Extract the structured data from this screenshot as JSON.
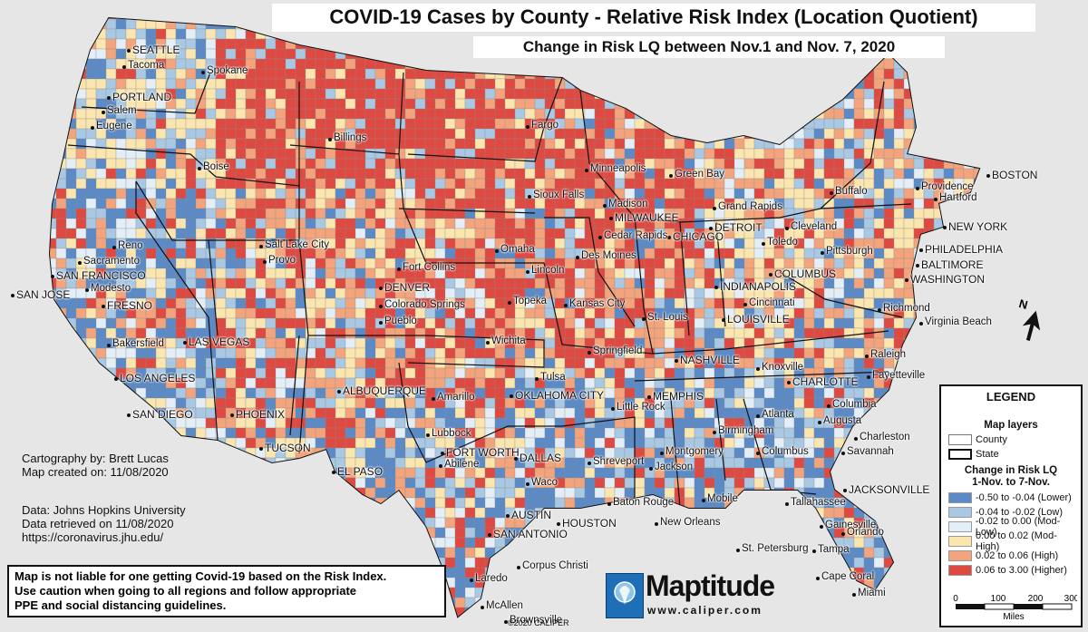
{
  "title": "COVID-19 Cases by County - Relative Risk Index (Location Quotient)",
  "subtitle": "Change in Risk LQ between Nov.1 and Nov. 7, 2020",
  "credits": {
    "cartography": "Cartography by: Brett Lucas",
    "created": "Map created on: 11/08/2020",
    "data_source": "Data: Johns Hopkins University",
    "retrieved": "Data retrieved on 11/08/2020",
    "url": "https://coronavirus.jhu.edu/"
  },
  "disclaimer": {
    "line1": "Map is not liable for one getting Covid-19 based on the Risk Index.",
    "line2": "Use caution when going to all regions and follow appropriate",
    "line3": "PPE and social distancing guidelines."
  },
  "legend": {
    "title": "LEGEND",
    "layers_heading": "Map layers",
    "layer_county": "County",
    "layer_state": "State",
    "change_heading": "Change in Risk LQ",
    "change_period": "1-Nov. to 7-Nov.",
    "classes": [
      {
        "label": "-0.50 to -0.04 (Lower)",
        "color": "#5b8ac6"
      },
      {
        "label": "-0.04 to -0.02 (Low)",
        "color": "#a9c8e4"
      },
      {
        "label": "-0.02 to 0.00 (Mod-Low)",
        "color": "#e4eef6"
      },
      {
        "label": "0.00 to 0.02 (Mod-High)",
        "color": "#fbe6b0"
      },
      {
        "label": "0.02 to 0.06 (High)",
        "color": "#f3a47c"
      },
      {
        "label": "0.06 to 3.00 (Higher)",
        "color": "#de4a42"
      }
    ],
    "scale_ticks": [
      "0",
      "100",
      "200",
      "300"
    ],
    "scale_unit": "Miles"
  },
  "brand": {
    "name": "Maptitude",
    "url": "www.caliper.com",
    "copyright": "©2020 CALIPER"
  },
  "north_label": "N",
  "cities": [
    "SEATTLE",
    "Tacoma",
    "PORTLAND",
    "Salem",
    "Eugene",
    "Spokane",
    "Boise",
    "Billings",
    "Fargo",
    "Minneapolis",
    "Green Bay",
    "Sioux Falls",
    "Madison",
    "MILWAUKEE",
    "Grand Rapids",
    "DETROIT",
    "Buffalo",
    "BOSTON",
    "Providence",
    "Hartford",
    "NEW YORK",
    "PHILADELPHIA",
    "BALTIMORE",
    "WASHINGTON",
    "Richmond",
    "Virginia Beach",
    "Cleveland",
    "Toledo",
    "Pittsburgh",
    "COLUMBUS",
    "INDIANAPOLIS",
    "Cincinnati",
    "LOUISVILLE",
    "CHICAGO",
    "Cedar Rapids",
    "Des Moines",
    "Omaha",
    "Lincoln",
    "Reno",
    "Sacramento",
    "SAN FRANCISCO",
    "SAN JOSE",
    "Modesto",
    "FRESNO",
    "Bakersfield",
    "LOS ANGELES",
    "SAN DIEGO",
    "LAS VEGAS",
    "PHOENIX",
    "TUCSON",
    "Salt Lake City",
    "Provo",
    "Fort Collins",
    "DENVER",
    "Colorado Springs",
    "Pueblo",
    "ALBUQUERQUE",
    "EL PASO",
    "Amarillo",
    "Lubbock",
    "FORT WORTH",
    "DALLAS",
    "Abilene",
    "Waco",
    "AUSTIN",
    "SAN ANTONIO",
    "HOUSTON",
    "Corpus Christi",
    "Laredo",
    "McAllen",
    "Brownsville",
    "Topeka",
    "Kansas City",
    "Wichita",
    "Tulsa",
    "OKLAHOMA CITY",
    "Springfield",
    "St. Louis",
    "Little Rock",
    "MEMPHIS",
    "NASHVILLE",
    "Knoxville",
    "CHARLOTTE",
    "Raleigh",
    "Fayetteville",
    "Columbia",
    "Charleston",
    "Savannah",
    "Augusta",
    "Atlanta",
    "Birmingham",
    "Columbus",
    "Montgomery",
    "Jackson",
    "Shreveport",
    "Baton Rouge",
    "New Orleans",
    "Mobile",
    "Tallahassee",
    "JACKSONVILLE",
    "Gainesville",
    "Orlando",
    "Tampa",
    "St. Petersburg",
    "Cape Coral",
    "Miami"
  ]
}
